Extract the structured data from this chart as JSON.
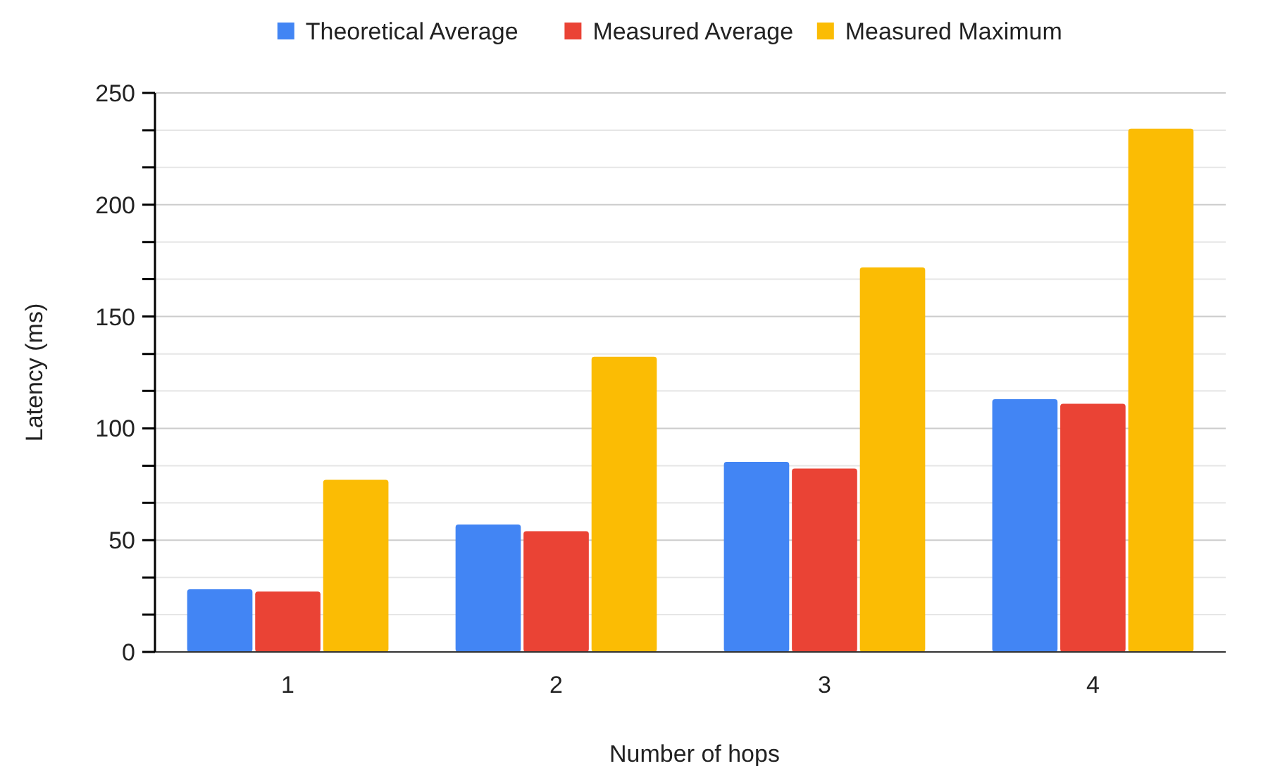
{
  "chart_data": {
    "type": "bar",
    "xlabel": "Number of hops",
    "ylabel": "Latency (ms)",
    "categories": [
      "1",
      "2",
      "3",
      "4"
    ],
    "series": [
      {
        "name": "Theoretical Average",
        "color": "#4285f4",
        "values": [
          28,
          57,
          85,
          113
        ]
      },
      {
        "name": "Measured Average",
        "color": "#ea4335",
        "values": [
          27,
          54,
          82,
          111
        ]
      },
      {
        "name": "Measured Maximum",
        "color": "#fbbc04",
        "values": [
          77,
          132,
          172,
          234
        ]
      }
    ],
    "ylim": [
      0,
      250
    ],
    "yticks": [
      0,
      {
        "value": 16.7,
        "label": null
      },
      {
        "value": 33.3,
        "label": null
      },
      50,
      {
        "value": 66.7,
        "label": null
      },
      {
        "value": 83.3,
        "label": null
      },
      100,
      {
        "value": 116.7,
        "label": null
      },
      {
        "value": 133.3,
        "label": null
      },
      150,
      {
        "value": 166.7,
        "label": null
      },
      {
        "value": 183.3,
        "label": null
      },
      200,
      {
        "value": 216.7,
        "label": null
      },
      {
        "value": 233.3,
        "label": null
      },
      250
    ],
    "grid": true,
    "legend": "top"
  }
}
